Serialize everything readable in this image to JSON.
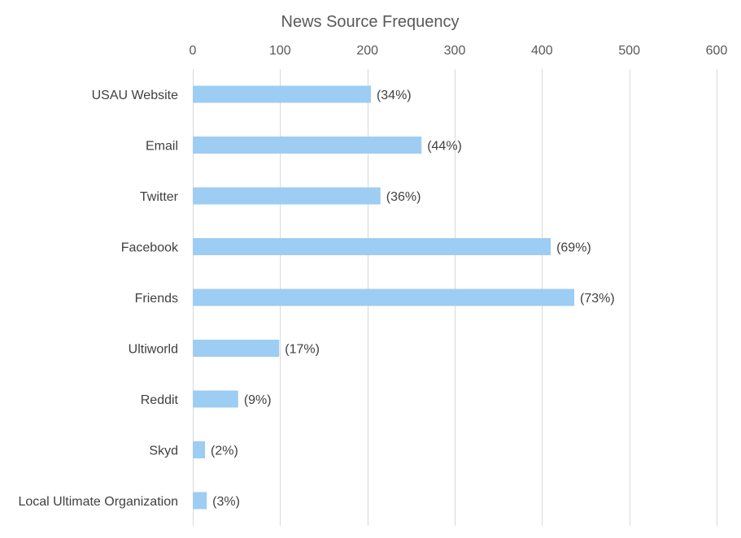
{
  "chart_data": {
    "type": "bar",
    "orientation": "horizontal",
    "title": "News Source Frequency",
    "xlabel": "",
    "ylabel": "",
    "xlim": [
      0,
      600
    ],
    "ticks": [
      "0",
      "100",
      "200",
      "300",
      "400",
      "500",
      "600"
    ],
    "tick_values": [
      0,
      100,
      200,
      300,
      400,
      500,
      600
    ],
    "axis_position": "top",
    "grid": true,
    "categories": [
      "USAU Website",
      "Email",
      "Twitter",
      "Facebook",
      "Friends",
      "Ultiworld",
      "Reddit",
      "Skyd",
      "Local Ultimate Organization"
    ],
    "values": [
      204,
      262,
      215,
      410,
      437,
      99,
      52,
      14,
      16
    ],
    "data_labels": [
      "(34%)",
      "(44%)",
      "(36%)",
      "(69%)",
      "(73%)",
      "(17%)",
      "(9%)",
      "(2%)",
      "(3%)"
    ],
    "colors": {
      "bar": "#9dcdf3",
      "grid": "#d9d9d9",
      "text": "#595959"
    }
  }
}
